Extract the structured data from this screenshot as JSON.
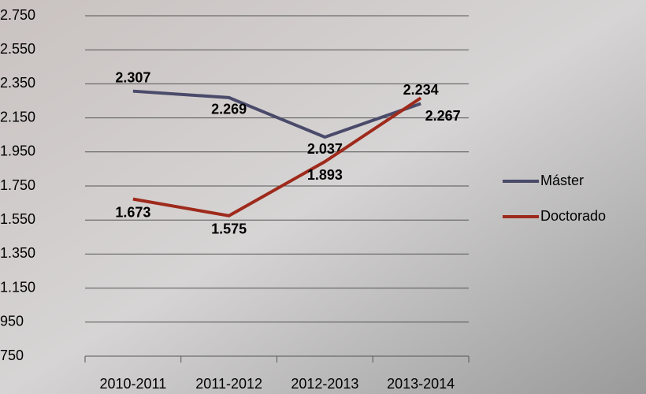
{
  "chart_data": {
    "type": "line",
    "categories": [
      "2010-2011",
      "2011-2012",
      "2012-2013",
      "2013-2014"
    ],
    "series": [
      {
        "name": "Máster",
        "color": "#4a4a6a",
        "values": [
          2307,
          2269,
          2037,
          2234
        ],
        "value_labels": [
          "2.307",
          "2.269",
          "2.037",
          "2.234"
        ]
      },
      {
        "name": "Doctorado",
        "color": "#9e2a1c",
        "values": [
          1673,
          1575,
          1893,
          2267
        ],
        "value_labels": [
          "1.673",
          "1.575",
          "1.893",
          "2.267"
        ]
      }
    ],
    "ylim": [
      750,
      2750
    ],
    "yticks": [
      750,
      950,
      {
        "value": 1150,
        "label": "1.150"
      },
      {
        "value": 1350,
        "label": "1.350"
      },
      {
        "value": 1550,
        "label": "1.550"
      },
      {
        "value": 1750,
        "label": "1.750"
      },
      {
        "value": 1950,
        "label": "1.950"
      },
      {
        "value": 2150,
        "label": "2.150"
      },
      {
        "value": 2350,
        "label": "2.350"
      },
      {
        "value": 2550,
        "label": "2.550"
      },
      {
        "value": 2750,
        "label": "2.750"
      }
    ],
    "grid": true,
    "legend": "right"
  }
}
